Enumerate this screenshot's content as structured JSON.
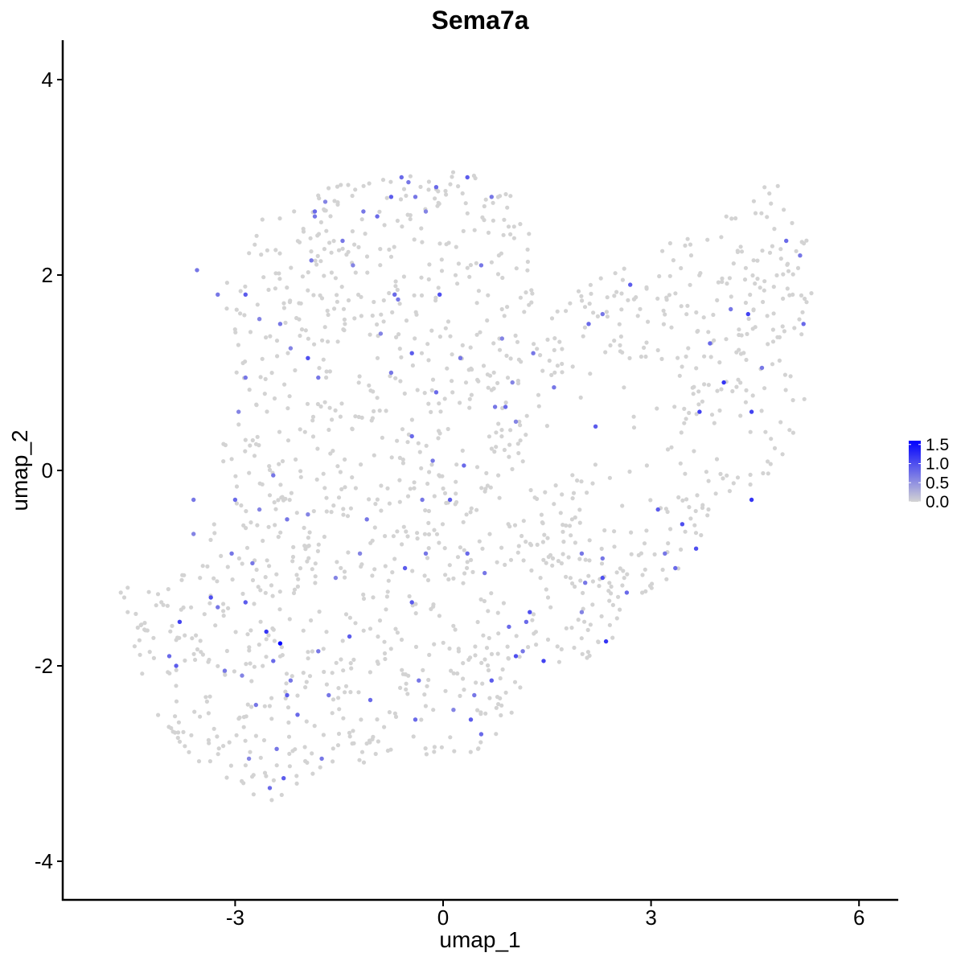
{
  "chart_data": {
    "type": "scatter",
    "title": "Sema7a",
    "xlabel": "umap_1",
    "ylabel": "umap_2",
    "xlim": [
      -5.85,
      6.55
    ],
    "ylim": [
      -4.4,
      4.4
    ],
    "x_ticks": [
      -3,
      0,
      3,
      6
    ],
    "x_tick_labels": [
      "-3",
      "0",
      "3",
      "6"
    ],
    "y_ticks": [
      -4,
      -2,
      0,
      2,
      4
    ],
    "y_tick_labels": [
      "-4",
      "-2",
      "0",
      "2",
      "4"
    ],
    "grid": false,
    "legend": {
      "type": "colorbar",
      "position": "right",
      "min": 0,
      "max": 1.6,
      "ticks": [
        0.0,
        0.5,
        1.0,
        1.5
      ],
      "tick_labels": [
        "0.0",
        "0.5",
        "1.0",
        "1.5"
      ]
    },
    "colors": {
      "low": "#d3d3d3",
      "high": "#0000ff",
      "axis": "#000000"
    },
    "colored_points": [
      [
        -3.6,
        -0.3,
        0.7
      ],
      [
        -3.6,
        -0.65,
        0.6
      ],
      [
        -3.35,
        -1.3,
        1.0
      ],
      [
        -3.8,
        -1.55,
        1.1
      ],
      [
        -3.25,
        -1.4,
        0.7
      ],
      [
        -3.95,
        -1.9,
        0.8
      ],
      [
        -3.85,
        -2.0,
        0.9
      ],
      [
        -3.15,
        -2.05,
        0.7
      ],
      [
        -2.9,
        -2.1,
        0.6
      ],
      [
        -2.55,
        -1.65,
        1.2
      ],
      [
        -2.35,
        -1.77,
        1.6
      ],
      [
        -2.45,
        -1.95,
        0.8
      ],
      [
        -2.25,
        -2.3,
        0.9
      ],
      [
        -2.1,
        -2.5,
        0.8
      ],
      [
        -2.7,
        -2.4,
        0.7
      ],
      [
        -2.3,
        -3.15,
        0.9
      ],
      [
        -2.5,
        -3.25,
        0.8
      ],
      [
        -2.8,
        -2.95,
        0.6
      ],
      [
        -2.4,
        -2.85,
        0.7
      ],
      [
        -2.85,
        -1.35,
        0.9
      ],
      [
        -2.75,
        -0.95,
        0.7
      ],
      [
        -2.65,
        -0.4,
        0.6
      ],
      [
        -2.45,
        -0.05,
        0.7
      ],
      [
        -3.0,
        -0.3,
        0.8
      ],
      [
        -2.95,
        0.6,
        0.6
      ],
      [
        -2.85,
        0.95,
        0.7
      ],
      [
        -2.65,
        1.55,
        0.6
      ],
      [
        -2.35,
        1.5,
        0.7
      ],
      [
        -2.2,
        1.25,
        0.6
      ],
      [
        -1.95,
        1.15,
        1.0
      ],
      [
        -1.8,
        0.95,
        0.7
      ],
      [
        -1.9,
        2.15,
        0.7
      ],
      [
        -1.85,
        2.65,
        0.8
      ],
      [
        -1.7,
        2.75,
        0.6
      ],
      [
        -1.45,
        2.35,
        0.7
      ],
      [
        -1.3,
        2.1,
        0.6
      ],
      [
        -1.15,
        2.65,
        0.7
      ],
      [
        -0.95,
        2.6,
        0.8
      ],
      [
        -0.75,
        2.8,
        0.9
      ],
      [
        -0.6,
        3.0,
        0.8
      ],
      [
        -0.5,
        2.95,
        0.7
      ],
      [
        -0.4,
        2.8,
        0.7
      ],
      [
        -0.25,
        2.65,
        0.6
      ],
      [
        -0.1,
        2.9,
        0.8
      ],
      [
        0.35,
        3.0,
        0.9
      ],
      [
        0.7,
        2.8,
        0.7
      ],
      [
        0.55,
        2.1,
        0.7
      ],
      [
        -0.05,
        1.8,
        1.0
      ],
      [
        -0.7,
        1.8,
        0.8
      ],
      [
        -0.9,
        1.4,
        0.6
      ],
      [
        -0.45,
        1.2,
        0.9
      ],
      [
        -0.75,
        1.0,
        0.7
      ],
      [
        -0.1,
        0.8,
        0.8
      ],
      [
        0.25,
        1.15,
        0.7
      ],
      [
        0.85,
        1.35,
        0.6
      ],
      [
        1.3,
        1.2,
        0.7
      ],
      [
        1.0,
        0.9,
        0.6
      ],
      [
        0.9,
        0.65,
        0.8
      ],
      [
        0.75,
        0.65,
        0.7
      ],
      [
        1.05,
        0.5,
        0.6
      ],
      [
        -0.15,
        0.1,
        0.7
      ],
      [
        -0.45,
        0.35,
        0.8
      ],
      [
        0.3,
        0.05,
        0.8
      ],
      [
        0.1,
        -0.3,
        0.9
      ],
      [
        -0.3,
        -0.3,
        0.7
      ],
      [
        -1.1,
        -0.5,
        0.7
      ],
      [
        -1.2,
        -0.85,
        0.6
      ],
      [
        -0.55,
        -1.0,
        0.9
      ],
      [
        -0.25,
        -0.85,
        0.7
      ],
      [
        0.35,
        -0.85,
        0.8
      ],
      [
        0.6,
        -1.05,
        0.7
      ],
      [
        0.95,
        -1.6,
        0.8
      ],
      [
        1.25,
        -1.45,
        1.0
      ],
      [
        1.2,
        -1.55,
        0.8
      ],
      [
        1.15,
        -1.85,
        0.7
      ],
      [
        1.45,
        -1.95,
        1.1
      ],
      [
        1.05,
        -1.9,
        1.0
      ],
      [
        0.7,
        -2.15,
        0.9
      ],
      [
        0.45,
        -2.3,
        0.7
      ],
      [
        0.4,
        -2.55,
        0.9
      ],
      [
        0.55,
        -2.7,
        0.8
      ],
      [
        0.15,
        -2.45,
        0.6
      ],
      [
        -0.4,
        -2.55,
        0.8
      ],
      [
        -0.35,
        -2.15,
        0.7
      ],
      [
        -1.05,
        -2.35,
        0.8
      ],
      [
        -1.35,
        -1.7,
        0.9
      ],
      [
        -1.55,
        -1.1,
        0.6
      ],
      [
        -1.8,
        -1.85,
        0.7
      ],
      [
        -1.65,
        -2.3,
        0.7
      ],
      [
        -1.75,
        -2.95,
        0.7
      ],
      [
        -0.45,
        -1.35,
        0.9
      ],
      [
        2.0,
        -0.85,
        0.7
      ],
      [
        2.05,
        -1.15,
        0.7
      ],
      [
        2.3,
        -0.9,
        0.7
      ],
      [
        2.3,
        -1.1,
        1.0
      ],
      [
        2.35,
        -1.75,
        1.2
      ],
      [
        2.65,
        -1.25,
        0.8
      ],
      [
        2.0,
        -1.45,
        0.6
      ],
      [
        3.1,
        -0.4,
        0.9
      ],
      [
        3.2,
        -0.85,
        0.7
      ],
      [
        3.45,
        -0.55,
        1.0
      ],
      [
        3.65,
        -0.8,
        1.0
      ],
      [
        3.35,
        -1.0,
        0.8
      ],
      [
        4.45,
        -0.3,
        1.2
      ],
      [
        4.05,
        0.9,
        1.2
      ],
      [
        4.45,
        0.6,
        1.1
      ],
      [
        3.7,
        0.6,
        1.1
      ],
      [
        3.85,
        1.3,
        0.8
      ],
      [
        4.15,
        1.65,
        0.7
      ],
      [
        4.4,
        1.6,
        1.1
      ],
      [
        4.6,
        1.05,
        0.7
      ],
      [
        5.2,
        1.5,
        0.8
      ],
      [
        5.15,
        2.2,
        0.7
      ],
      [
        4.95,
        2.35,
        0.8
      ],
      [
        2.7,
        1.9,
        0.9
      ],
      [
        2.3,
        1.6,
        0.7
      ],
      [
        2.1,
        1.5,
        0.8
      ],
      [
        2.2,
        0.45,
        0.9
      ],
      [
        1.6,
        0.85,
        0.7
      ],
      [
        -1.85,
        2.6,
        0.7
      ],
      [
        -2.85,
        1.8,
        0.9
      ],
      [
        -3.25,
        1.8,
        0.7
      ],
      [
        -3.55,
        2.05,
        0.7
      ],
      [
        -0.65,
        1.75,
        0.7
      ],
      [
        -2.25,
        -0.5,
        0.7
      ],
      [
        -1.95,
        -0.45,
        0.6
      ],
      [
        -3.05,
        -0.85,
        0.7
      ],
      [
        -2.2,
        -2.15,
        0.7
      ]
    ]
  }
}
